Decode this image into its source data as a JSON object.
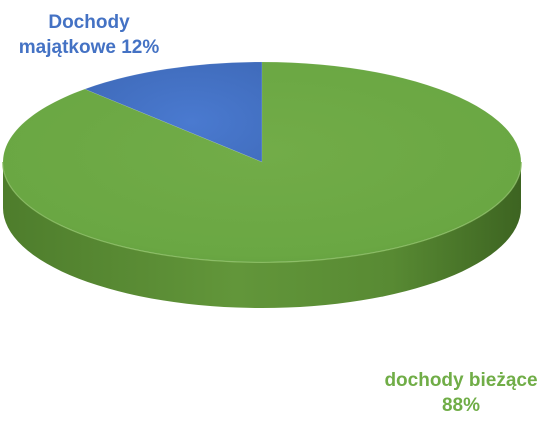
{
  "chart_data": {
    "type": "pie",
    "style": "3d",
    "slices": [
      {
        "label_line1": "Dochody",
        "label_line2": "majątkowe 12%",
        "value": 12,
        "unit": "%",
        "color": "#4472c4"
      },
      {
        "label_line1": "dochody bieżące",
        "label_line2": "88%",
        "value": 88,
        "unit": "%",
        "color": "#70ad47"
      }
    ]
  }
}
